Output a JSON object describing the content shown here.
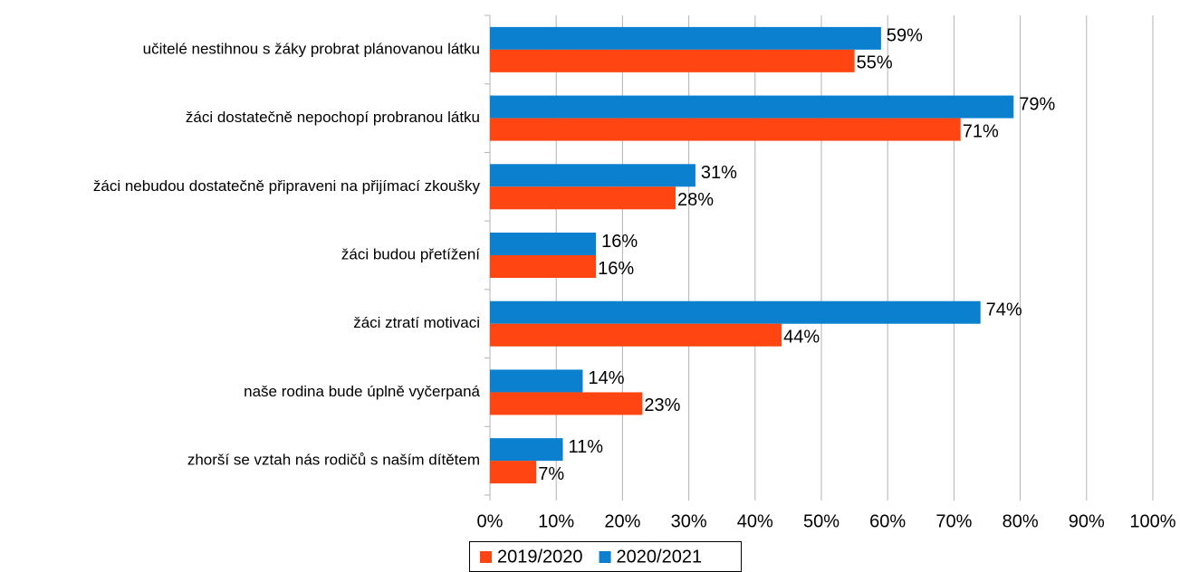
{
  "chart_data": {
    "type": "bar",
    "orientation": "horizontal",
    "categories": [
      "učitelé nestihnou s žáky probrat plánovanou látku",
      "žáci dostatečně nepochopí probranou látku",
      "žáci nebudou dostatečně připraveni na přijímací zkoušky",
      "žáci budou přetížení",
      "žáci ztratí motivaci",
      "naše rodina bude úplně vyčerpaná",
      "zhorší se vztah nás rodičů s naším dítětem"
    ],
    "series": [
      {
        "name": "2019/2020",
        "color": "#ff4512",
        "values": [
          55,
          71,
          28,
          16,
          44,
          23,
          7
        ],
        "value_labels": [
          "55%",
          "71%",
          "28%",
          "16%",
          "44%",
          "23%",
          "7%"
        ]
      },
      {
        "name": "2020/2021",
        "color": "#0a80cf",
        "values": [
          59,
          79,
          31,
          16,
          74,
          14,
          11
        ],
        "value_labels": [
          "59%",
          "79%",
          "31%",
          "16%",
          "74%",
          "14%",
          "11%"
        ]
      }
    ],
    "xlim": [
      0,
      100
    ],
    "xticks": [
      {
        "value": 0,
        "label": "0%"
      },
      {
        "value": 10,
        "label": "10%"
      },
      {
        "value": 20,
        "label": "20%"
      },
      {
        "value": 30,
        "label": "30%"
      },
      {
        "value": 40,
        "label": "40%"
      },
      {
        "value": 50,
        "label": "50%"
      },
      {
        "value": 60,
        "label": "60%"
      },
      {
        "value": 70,
        "label": "70%"
      },
      {
        "value": 80,
        "label": "80%"
      },
      {
        "value": 90,
        "label": "90%"
      },
      {
        "value": 100,
        "label": "100%"
      }
    ],
    "grid": true,
    "legend": "bottom"
  }
}
